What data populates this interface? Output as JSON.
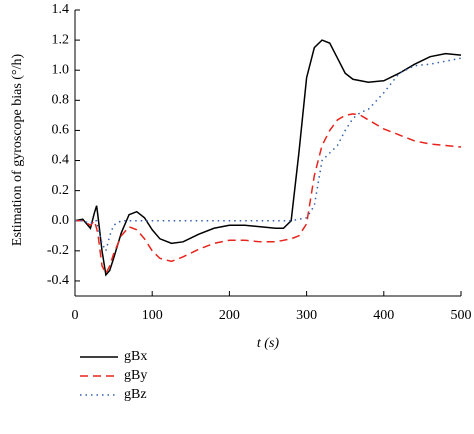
{
  "chart_data": {
    "type": "line",
    "ylabel": "Estimation of gyroscope bias (°/h)",
    "xlabel": "t (s)",
    "x": [
      0,
      10,
      20,
      25,
      28,
      30,
      35,
      40,
      45,
      50,
      60,
      70,
      80,
      90,
      100,
      110,
      125,
      140,
      160,
      180,
      200,
      220,
      240,
      260,
      270,
      280,
      290,
      300,
      310,
      320,
      330,
      340,
      350,
      360,
      370,
      380,
      400,
      420,
      440,
      460,
      480,
      500
    ],
    "series": [
      {
        "name": "gBx",
        "color": "#000000",
        "dash": "solid",
        "values": [
          0,
          0.01,
          -0.05,
          0.05,
          0.1,
          0.02,
          -0.2,
          -0.36,
          -0.33,
          -0.25,
          -0.08,
          0.04,
          0.06,
          0.02,
          -0.06,
          -0.12,
          -0.15,
          -0.14,
          -0.09,
          -0.05,
          -0.03,
          -0.03,
          -0.04,
          -0.05,
          -0.05,
          0,
          0.45,
          0.95,
          1.15,
          1.2,
          1.18,
          1.08,
          0.98,
          0.94,
          0.93,
          0.92,
          0.93,
          0.98,
          1.04,
          1.09,
          1.11,
          1.1
        ]
      },
      {
        "name": "gBy",
        "color": "#e8231b",
        "dash": "dashed",
        "values": [
          0,
          0,
          -0.03,
          0,
          -0.05,
          -0.1,
          -0.3,
          -0.35,
          -0.3,
          -0.22,
          -0.1,
          -0.04,
          -0.06,
          -0.12,
          -0.2,
          -0.25,
          -0.27,
          -0.24,
          -0.19,
          -0.15,
          -0.13,
          -0.13,
          -0.14,
          -0.14,
          -0.13,
          -0.12,
          -0.1,
          -0.02,
          0.3,
          0.5,
          0.6,
          0.67,
          0.7,
          0.71,
          0.7,
          0.67,
          0.61,
          0.57,
          0.53,
          0.51,
          0.5,
          0.49
        ]
      },
      {
        "name": "gBz",
        "color": "#2f5fb0",
        "dash": "dotted",
        "values": [
          0,
          0,
          -0.02,
          0,
          0,
          -0.05,
          -0.15,
          -0.2,
          -0.1,
          -0.03,
          0,
          0,
          0,
          0,
          0,
          0,
          0,
          0,
          0,
          0,
          0,
          0,
          0,
          0,
          0,
          0,
          0.01,
          0.02,
          0.1,
          0.4,
          0.45,
          0.5,
          0.6,
          0.68,
          0.72,
          0.74,
          0.85,
          0.98,
          1.03,
          1.04,
          1.06,
          1.08
        ]
      }
    ],
    "xlim": [
      0,
      500
    ],
    "xticks": [
      0,
      100,
      200,
      300,
      400,
      500
    ],
    "ylim": [
      -0.5,
      1.4
    ],
    "yticks": [
      -0.4,
      -0.2,
      {
        "value": 0,
        "label": "0.0"
      },
      0.2,
      0.4,
      0.6,
      0.8,
      {
        "value": 1,
        "label": "1.0"
      },
      1.2,
      1.4
    ]
  }
}
